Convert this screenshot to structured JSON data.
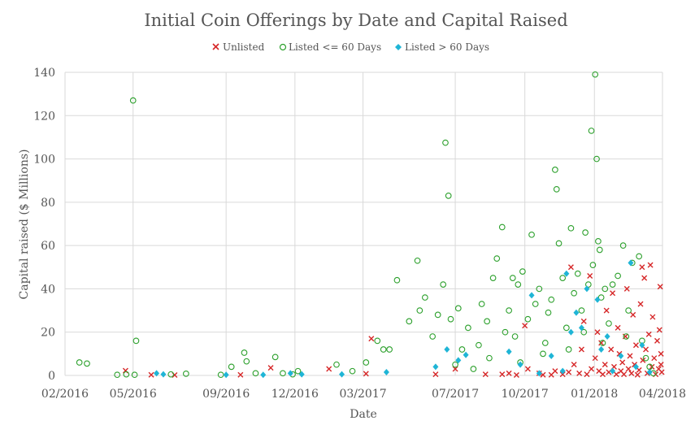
{
  "chart_data": {
    "type": "scatter",
    "title": "Initial Coin Offerings by Date and Capital Raised",
    "xlabel": "Date",
    "ylabel": "Capital raised ($ Millions)",
    "xlim": [
      "2016-02-01",
      "2018-04-01"
    ],
    "ylim": [
      0,
      140
    ],
    "x_ticks": [
      "02/2016",
      "05/2016",
      "09/2016",
      "12/2016",
      "03/2017",
      "07/2017",
      "10/2017",
      "01/2018",
      "04/2018"
    ],
    "x_tick_dates": [
      "2016-02-01",
      "2016-05-01",
      "2016-09-01",
      "2016-12-01",
      "2017-03-01",
      "2017-07-01",
      "2017-10-01",
      "2018-01-01",
      "2018-04-01"
    ],
    "y_ticks": [
      0,
      20,
      40,
      60,
      80,
      100,
      120,
      140
    ],
    "grid": true,
    "legend": "top-center",
    "series": [
      {
        "name": "Unlisted",
        "marker": "x",
        "color": "#d62728",
        "points": [
          [
            "2016-04-21",
            2.2
          ],
          [
            "2016-05-25",
            0.3
          ],
          [
            "2016-06-25",
            0.2
          ],
          [
            "2016-09-20",
            0.3
          ],
          [
            "2016-10-30",
            3.5
          ],
          [
            "2017-01-15",
            3.0
          ],
          [
            "2017-03-12",
            17.0
          ],
          [
            "2017-03-05",
            0.8
          ],
          [
            "2017-06-05",
            0.5
          ],
          [
            "2017-07-01",
            3.0
          ],
          [
            "2017-08-10",
            0.5
          ],
          [
            "2017-09-01",
            0.5
          ],
          [
            "2017-09-10",
            1.0
          ],
          [
            "2017-09-20",
            0.2
          ],
          [
            "2017-10-01",
            23.0
          ],
          [
            "2017-10-05",
            3.0
          ],
          [
            "2017-10-20",
            1.0
          ],
          [
            "2017-10-25",
            0.3
          ],
          [
            "2017-11-05",
            0.3
          ],
          [
            "2017-11-10",
            2.0
          ],
          [
            "2017-11-20",
            0.5
          ],
          [
            "2017-11-28",
            1.5
          ],
          [
            "2017-12-01",
            50.0
          ],
          [
            "2017-12-05",
            5.0
          ],
          [
            "2017-12-12",
            1.0
          ],
          [
            "2017-12-15",
            12.0
          ],
          [
            "2017-12-18",
            25.0
          ],
          [
            "2017-12-22",
            0.5
          ],
          [
            "2017-12-26",
            46.0
          ],
          [
            "2017-12-28",
            3.0
          ],
          [
            "2018-01-02",
            8.0
          ],
          [
            "2018-01-05",
            20.0
          ],
          [
            "2018-01-07",
            2.0
          ],
          [
            "2018-01-10",
            15.0
          ],
          [
            "2018-01-12",
            0.5
          ],
          [
            "2018-01-15",
            5.0
          ],
          [
            "2018-01-17",
            30.0
          ],
          [
            "2018-01-20",
            1.5
          ],
          [
            "2018-01-23",
            12.0
          ],
          [
            "2018-01-25",
            38.0
          ],
          [
            "2018-01-27",
            4.0
          ],
          [
            "2018-01-30",
            0.5
          ],
          [
            "2018-02-01",
            22.0
          ],
          [
            "2018-02-03",
            10.0
          ],
          [
            "2018-02-05",
            2.0
          ],
          [
            "2018-02-07",
            6.0
          ],
          [
            "2018-02-09",
            0.5
          ],
          [
            "2018-02-11",
            18.0
          ],
          [
            "2018-02-13",
            40.0
          ],
          [
            "2018-02-15",
            3.0
          ],
          [
            "2018-02-17",
            9.0
          ],
          [
            "2018-02-19",
            1.0
          ],
          [
            "2018-02-21",
            28.0
          ],
          [
            "2018-02-23",
            5.0
          ],
          [
            "2018-02-25",
            14.0
          ],
          [
            "2018-02-27",
            0.3
          ],
          [
            "2018-03-01",
            2.5
          ],
          [
            "2018-03-03",
            33.0
          ],
          [
            "2018-03-05",
            50.0
          ],
          [
            "2018-03-06",
            7.0
          ],
          [
            "2018-03-08",
            45.0
          ],
          [
            "2018-03-10",
            12.0
          ],
          [
            "2018-03-12",
            1.0
          ],
          [
            "2018-03-14",
            19.0
          ],
          [
            "2018-03-16",
            51.0
          ],
          [
            "2018-03-18",
            4.0
          ],
          [
            "2018-03-19",
            27.0
          ],
          [
            "2018-03-21",
            8.0
          ],
          [
            "2018-03-23",
            0.5
          ],
          [
            "2018-03-25",
            16.0
          ],
          [
            "2018-03-27",
            3.0
          ],
          [
            "2018-03-28",
            21.0
          ],
          [
            "2018-03-29",
            41.0
          ],
          [
            "2018-03-30",
            10.0
          ],
          [
            "2018-03-31",
            1.5
          ],
          [
            "2018-03-30",
            5.0
          ]
        ]
      },
      {
        "name": "Listed <= 60 Days",
        "marker": "o",
        "color": "#2ca02c",
        "points": [
          [
            "2016-02-20",
            6.0
          ],
          [
            "2016-03-01",
            5.5
          ],
          [
            "2016-04-10",
            0.3
          ],
          [
            "2016-04-22",
            0.5
          ],
          [
            "2016-05-01",
            127.0
          ],
          [
            "2016-05-03",
            0.3
          ],
          [
            "2016-05-05",
            16.0
          ],
          [
            "2016-06-20",
            0.5
          ],
          [
            "2016-07-10",
            0.8
          ],
          [
            "2016-08-25",
            0.3
          ],
          [
            "2016-09-08",
            4.0
          ],
          [
            "2016-09-25",
            10.5
          ],
          [
            "2016-09-28",
            6.5
          ],
          [
            "2016-10-10",
            1.0
          ],
          [
            "2016-11-05",
            8.5
          ],
          [
            "2016-11-15",
            1.0
          ],
          [
            "2016-11-28",
            0.5
          ],
          [
            "2016-12-05",
            2.0
          ],
          [
            "2017-01-25",
            5.0
          ],
          [
            "2017-02-15",
            2.0
          ],
          [
            "2017-03-05",
            6.0
          ],
          [
            "2017-03-20",
            16.0
          ],
          [
            "2017-03-28",
            12.0
          ],
          [
            "2017-04-05",
            12.0
          ],
          [
            "2017-04-15",
            44.0
          ],
          [
            "2017-05-01",
            25.0
          ],
          [
            "2017-05-12",
            53.0
          ],
          [
            "2017-05-15",
            30.0
          ],
          [
            "2017-05-22",
            36.0
          ],
          [
            "2017-06-01",
            18.0
          ],
          [
            "2017-06-08",
            28.0
          ],
          [
            "2017-06-15",
            42.0
          ],
          [
            "2017-06-18",
            107.5
          ],
          [
            "2017-06-22",
            83.0
          ],
          [
            "2017-06-25",
            26.0
          ],
          [
            "2017-07-01",
            5.0
          ],
          [
            "2017-07-05",
            31.0
          ],
          [
            "2017-07-10",
            12.0
          ],
          [
            "2017-07-18",
            22.0
          ],
          [
            "2017-08-01",
            14.0
          ],
          [
            "2017-08-05",
            33.0
          ],
          [
            "2017-08-12",
            25.0
          ],
          [
            "2017-08-20",
            45.0
          ],
          [
            "2017-08-25",
            54.0
          ],
          [
            "2017-09-01",
            68.5
          ],
          [
            "2017-09-05",
            20.0
          ],
          [
            "2017-09-10",
            30.0
          ],
          [
            "2017-09-15",
            45.0
          ],
          [
            "2017-09-18",
            18.0
          ],
          [
            "2017-09-22",
            42.0
          ],
          [
            "2017-09-28",
            48.0
          ],
          [
            "2017-10-05",
            26.0
          ],
          [
            "2017-10-10",
            65.0
          ],
          [
            "2017-10-15",
            33.0
          ],
          [
            "2017-10-20",
            40.0
          ],
          [
            "2017-10-28",
            15.0
          ],
          [
            "2017-11-01",
            29.0
          ],
          [
            "2017-11-05",
            35.0
          ],
          [
            "2017-11-10",
            95.0
          ],
          [
            "2017-11-12",
            86.0
          ],
          [
            "2017-11-15",
            61.0
          ],
          [
            "2017-11-20",
            45.0
          ],
          [
            "2017-11-25",
            22.0
          ],
          [
            "2017-12-01",
            68.0
          ],
          [
            "2017-12-05",
            38.0
          ],
          [
            "2017-12-10",
            47.0
          ],
          [
            "2017-12-15",
            30.0
          ],
          [
            "2017-12-20",
            66.0
          ],
          [
            "2017-12-24",
            42.0
          ],
          [
            "2017-12-28",
            113.0
          ],
          [
            "2017-12-30",
            51.0
          ],
          [
            "2018-01-02",
            139.0
          ],
          [
            "2018-01-04",
            100.0
          ],
          [
            "2018-01-06",
            62.0
          ],
          [
            "2018-01-08",
            58.0
          ],
          [
            "2018-01-10",
            36.0
          ],
          [
            "2018-01-15",
            40.0
          ],
          [
            "2018-01-20",
            24.0
          ],
          [
            "2018-01-25",
            42.0
          ],
          [
            "2018-02-01",
            46.0
          ],
          [
            "2018-02-08",
            60.0
          ],
          [
            "2018-02-15",
            30.0
          ],
          [
            "2018-02-20",
            52.0
          ],
          [
            "2018-03-01",
            55.0
          ],
          [
            "2018-03-05",
            16.0
          ],
          [
            "2018-03-10",
            8.0
          ],
          [
            "2018-03-15",
            4.0
          ],
          [
            "2018-03-20",
            1.0
          ],
          [
            "2017-08-15",
            8.0
          ],
          [
            "2017-09-25",
            6.0
          ],
          [
            "2017-10-25",
            10.0
          ],
          [
            "2017-11-28",
            12.0
          ],
          [
            "2017-12-18",
            20.0
          ],
          [
            "2018-01-12",
            15.0
          ],
          [
            "2018-02-12",
            18.0
          ],
          [
            "2017-07-25",
            3.0
          ]
        ]
      },
      {
        "name": "Listed > 60 Days",
        "marker": "diamond",
        "color": "#1fb5d6",
        "points": [
          [
            "2016-06-01",
            1.0
          ],
          [
            "2016-06-10",
            0.5
          ],
          [
            "2016-09-01",
            0.3
          ],
          [
            "2016-10-20",
            0.3
          ],
          [
            "2016-11-25",
            1.0
          ],
          [
            "2016-12-10",
            0.5
          ],
          [
            "2017-02-01",
            0.5
          ],
          [
            "2017-04-01",
            1.5
          ],
          [
            "2017-06-05",
            4.0
          ],
          [
            "2017-06-20",
            12.0
          ],
          [
            "2017-07-05",
            7.0
          ],
          [
            "2017-07-15",
            9.5
          ],
          [
            "2017-09-10",
            11.0
          ],
          [
            "2017-09-25",
            5.0
          ],
          [
            "2017-10-10",
            37.0
          ],
          [
            "2017-10-20",
            1.0
          ],
          [
            "2017-11-05",
            9.0
          ],
          [
            "2017-11-20",
            2.0
          ],
          [
            "2017-11-25",
            47.0
          ],
          [
            "2017-12-01",
            20.0
          ],
          [
            "2017-12-08",
            29.0
          ],
          [
            "2017-12-15",
            22.0
          ],
          [
            "2017-12-22",
            40.0
          ],
          [
            "2018-01-05",
            35.0
          ],
          [
            "2018-01-10",
            12.0
          ],
          [
            "2018-01-18",
            18.0
          ],
          [
            "2018-01-25",
            2.0
          ],
          [
            "2018-02-05",
            9.0
          ],
          [
            "2018-02-18",
            52.0
          ],
          [
            "2018-02-25",
            4.0
          ],
          [
            "2018-03-05",
            14.0
          ],
          [
            "2018-03-15",
            1.5
          ]
        ]
      }
    ]
  }
}
